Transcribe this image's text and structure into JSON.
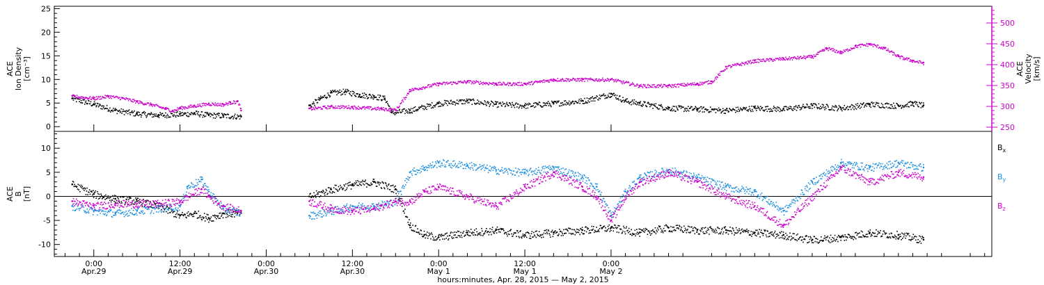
{
  "chart_data": [
    {
      "type": "scatter",
      "panel": "top",
      "left_ylabel": [
        "ACE",
        "Ion Density",
        "[cm⁻³]"
      ],
      "right_ylabel": [
        "ACE",
        "Velocity",
        "[km/s]"
      ],
      "left_ylim": [
        -1,
        25.5
      ],
      "left_yticks": [
        0,
        5,
        10,
        15,
        20,
        25
      ],
      "right_ylim": [
        240,
        540
      ],
      "right_yticks": [
        250,
        300,
        350,
        400,
        450,
        500
      ],
      "series": [
        {
          "color": "#000000",
          "axis": "left",
          "points": [
            [
              -3,
              6.0
            ],
            [
              0,
              4.8
            ],
            [
              3,
              3.5
            ],
            [
              6,
              2.8
            ],
            [
              9,
              2.5
            ],
            [
              12,
              2.7
            ],
            [
              14,
              2.9
            ],
            [
              16,
              2.5
            ],
            [
              18,
              2.4
            ],
            [
              20.5,
              2.2
            ],
            [
              30,
              4.5
            ],
            [
              31.5,
              6.0
            ],
            [
              33,
              7.2
            ],
            [
              35,
              7.5
            ],
            [
              37,
              6.8
            ],
            [
              39,
              6.5
            ],
            [
              40.5,
              6.0
            ],
            [
              41.5,
              3.0
            ],
            [
              44,
              3.5
            ],
            [
              48,
              5.0
            ],
            [
              52,
              5.5
            ],
            [
              56,
              4.8
            ],
            [
              60,
              4.5
            ],
            [
              64,
              5.0
            ],
            [
              68,
              5.5
            ],
            [
              72,
              7.0
            ],
            [
              74,
              5.5
            ],
            [
              76,
              5.0
            ],
            [
              80,
              4.0
            ],
            [
              84,
              3.8
            ],
            [
              88,
              3.5
            ],
            [
              92,
              4.0
            ],
            [
              96,
              3.8
            ],
            [
              100,
              4.5
            ],
            [
              104,
              4.0
            ],
            [
              108,
              4.8
            ],
            [
              112,
              4.5
            ],
            [
              114,
              5.0
            ],
            [
              115.5,
              4.5
            ]
          ]
        },
        {
          "color": "#CC00CC",
          "axis": "right",
          "points": [
            [
              -3,
              325
            ],
            [
              0,
              320
            ],
            [
              2,
              325
            ],
            [
              4,
              320
            ],
            [
              6,
              312
            ],
            [
              8,
              305
            ],
            [
              10,
              295
            ],
            [
              11,
              290
            ],
            [
              12,
              297
            ],
            [
              14,
              302
            ],
            [
              16,
              307
            ],
            [
              18,
              305
            ],
            [
              19,
              310
            ],
            [
              20,
              312
            ],
            [
              20.5,
              290
            ],
            [
              30,
              295
            ],
            [
              33,
              300
            ],
            [
              36,
              299
            ],
            [
              40,
              295
            ],
            [
              42,
              292
            ],
            [
              44,
              340
            ],
            [
              48,
              355
            ],
            [
              52,
              360
            ],
            [
              56,
              355
            ],
            [
              60,
              355
            ],
            [
              64,
              365
            ],
            [
              68,
              365
            ],
            [
              72,
              365
            ],
            [
              76,
              350
            ],
            [
              80,
              350
            ],
            [
              84,
              355
            ],
            [
              86,
              360
            ],
            [
              88,
              395
            ],
            [
              92,
              410
            ],
            [
              96,
              415
            ],
            [
              100,
              420
            ],
            [
              102,
              440
            ],
            [
              104,
              430
            ],
            [
              106,
              445
            ],
            [
              108,
              450
            ],
            [
              110,
              440
            ],
            [
              112,
              420
            ],
            [
              114,
              410
            ],
            [
              115.5,
              405
            ]
          ]
        }
      ]
    },
    {
      "type": "scatter",
      "panel": "bottom",
      "ylabel": [
        "ACE",
        "B",
        "[nT]"
      ],
      "ylim": [
        -12.5,
        13.5
      ],
      "yticks": [
        -10,
        -5,
        0,
        5,
        10
      ],
      "zero_line": true,
      "legend": [
        {
          "label": "B",
          "sub": "x",
          "color": "#000000"
        },
        {
          "label": "B",
          "sub": "y",
          "color": "#1E8FE0"
        },
        {
          "label": "B",
          "sub": "z",
          "color": "#CC00CC"
        }
      ],
      "series": [
        {
          "name": "Bx",
          "color": "#000000",
          "points": [
            [
              -3,
              2.5
            ],
            [
              0,
              0.5
            ],
            [
              3,
              -0.5
            ],
            [
              6,
              -1.0
            ],
            [
              9,
              -2.0
            ],
            [
              12,
              -4.0
            ],
            [
              14,
              -3.5
            ],
            [
              16,
              -4.5
            ],
            [
              18,
              -3.5
            ],
            [
              20.5,
              -3.5
            ],
            [
              30,
              0.0
            ],
            [
              33,
              1.5
            ],
            [
              36,
              2.5
            ],
            [
              39,
              3.0
            ],
            [
              42,
              1.5
            ],
            [
              44,
              -6.0
            ],
            [
              46,
              -8.0
            ],
            [
              48,
              -8.5
            ],
            [
              52,
              -7.5
            ],
            [
              56,
              -7.0
            ],
            [
              60,
              -8.0
            ],
            [
              64,
              -7.5
            ],
            [
              68,
              -7.0
            ],
            [
              72,
              -6.5
            ],
            [
              76,
              -7.5
            ],
            [
              80,
              -6.5
            ],
            [
              84,
              -7.0
            ],
            [
              88,
              -7.0
            ],
            [
              92,
              -7.5
            ],
            [
              96,
              -8.0
            ],
            [
              100,
              -9.0
            ],
            [
              104,
              -8.5
            ],
            [
              108,
              -7.5
            ],
            [
              112,
              -8.0
            ],
            [
              115.5,
              -9.0
            ]
          ]
        },
        {
          "name": "By",
          "color": "#1E8FE0",
          "points": [
            [
              -3,
              -2.0
            ],
            [
              0,
              -3.0
            ],
            [
              3,
              -3.5
            ],
            [
              6,
              -3.0
            ],
            [
              9,
              -2.5
            ],
            [
              12,
              -2.0
            ],
            [
              13,
              2.0
            ],
            [
              15,
              3.5
            ],
            [
              16,
              1.0
            ],
            [
              18,
              -2.5
            ],
            [
              20.5,
              -3.5
            ],
            [
              30,
              -4.0
            ],
            [
              33,
              -3.0
            ],
            [
              36,
              -2.0
            ],
            [
              39,
              -2.0
            ],
            [
              42,
              -1.0
            ],
            [
              44,
              5.0
            ],
            [
              46,
              6.0
            ],
            [
              48,
              7.0
            ],
            [
              52,
              6.5
            ],
            [
              56,
              5.5
            ],
            [
              60,
              5.0
            ],
            [
              64,
              6.0
            ],
            [
              68,
              4.0
            ],
            [
              70,
              2.0
            ],
            [
              72,
              -4.0
            ],
            [
              74,
              1.0
            ],
            [
              76,
              4.0
            ],
            [
              80,
              5.5
            ],
            [
              84,
              4.0
            ],
            [
              88,
              2.0
            ],
            [
              92,
              1.0
            ],
            [
              96,
              -3.0
            ],
            [
              100,
              3.0
            ],
            [
              104,
              7.0
            ],
            [
              108,
              6.0
            ],
            [
              112,
              7.0
            ],
            [
              115.5,
              6.0
            ]
          ]
        },
        {
          "name": "Bz",
          "color": "#CC00CC",
          "points": [
            [
              -3,
              -1.0
            ],
            [
              0,
              -2.0
            ],
            [
              3,
              -1.5
            ],
            [
              6,
              -1.5
            ],
            [
              9,
              -1.5
            ],
            [
              12,
              -1.0
            ],
            [
              13,
              0.0
            ],
            [
              15,
              1.5
            ],
            [
              16,
              0.0
            ],
            [
              18,
              -2.0
            ],
            [
              20.5,
              -3.0
            ],
            [
              30,
              -1.0
            ],
            [
              33,
              -2.5
            ],
            [
              36,
              -3.0
            ],
            [
              39,
              -2.5
            ],
            [
              42,
              -1.0
            ],
            [
              44,
              -1.0
            ],
            [
              46,
              1.0
            ],
            [
              48,
              2.0
            ],
            [
              52,
              0.0
            ],
            [
              56,
              -2.0
            ],
            [
              60,
              2.0
            ],
            [
              64,
              5.0
            ],
            [
              68,
              2.0
            ],
            [
              70,
              0.0
            ],
            [
              72,
              -5.0
            ],
            [
              74,
              0.0
            ],
            [
              76,
              3.0
            ],
            [
              80,
              5.0
            ],
            [
              84,
              3.0
            ],
            [
              88,
              0.0
            ],
            [
              92,
              -2.0
            ],
            [
              96,
              -6.0
            ],
            [
              100,
              0.0
            ],
            [
              104,
              6.0
            ],
            [
              108,
              3.0
            ],
            [
              112,
              5.0
            ],
            [
              115.5,
              4.0
            ]
          ]
        }
      ]
    }
  ],
  "x_axis": {
    "range": [
      -5.5,
      125
    ],
    "ticks": [
      {
        "x": 0,
        "line1": "0:00",
        "line2": "Apr.29"
      },
      {
        "x": 12,
        "line1": "12:00",
        "line2": "Apr.29"
      },
      {
        "x": 24,
        "line1": "0:00",
        "line2": "Apr.30"
      },
      {
        "x": 36,
        "line1": "12:00",
        "line2": "Apr.30"
      },
      {
        "x": 48,
        "line1": "0:00",
        "line2": "May 1"
      },
      {
        "x": 60,
        "line1": "12:00",
        "line2": "May 1"
      },
      {
        "x": 72,
        "line1": "0:00",
        "line2": "May 2"
      }
    ],
    "title": "hours:minutes, Apr. 28, 2015 — May  2, 2015"
  }
}
